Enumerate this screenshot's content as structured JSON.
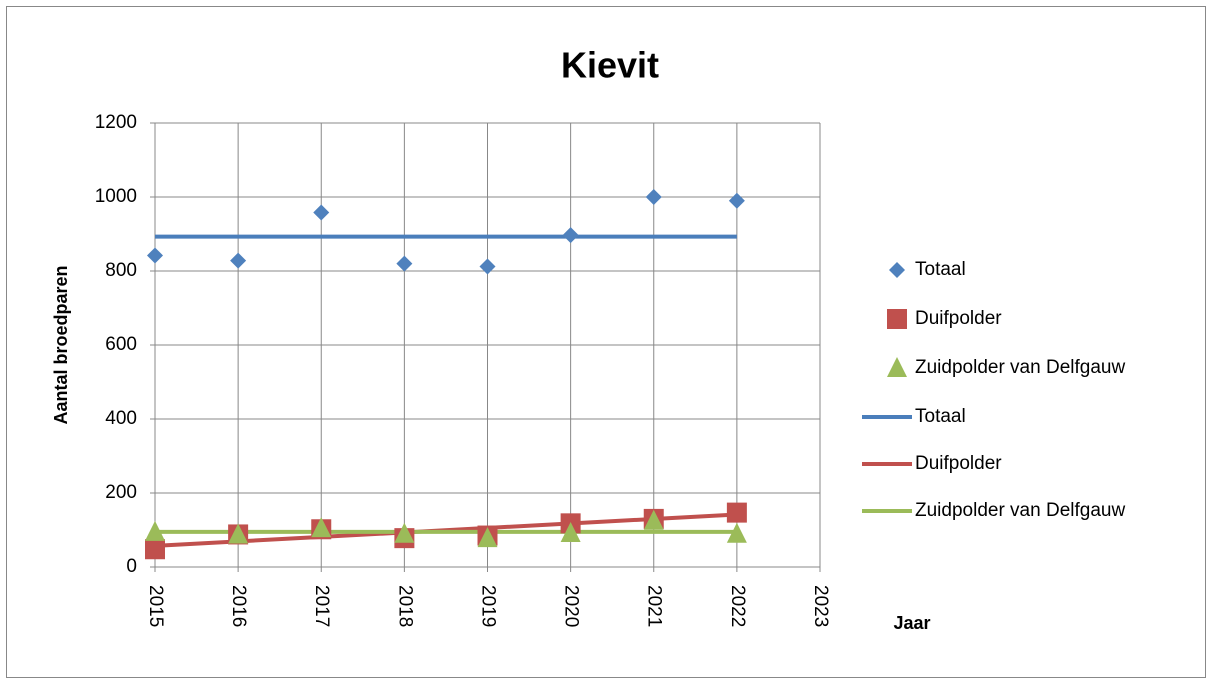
{
  "chart_data": {
    "type": "scatter",
    "title": "Kievit",
    "x_label": "Jaar",
    "y_label": "Aantal broedparen",
    "xlim": [
      2015,
      2023
    ],
    "xticks": [
      2015,
      2016,
      2017,
      2018,
      2019,
      2020,
      2021,
      2022,
      2023
    ],
    "ylim": [
      0,
      1200
    ],
    "yticks": [
      0,
      200,
      400,
      600,
      800,
      1000,
      1200
    ],
    "grid": true,
    "legend": "right",
    "x": [
      2015,
      2016,
      2017,
      2018,
      2019,
      2020,
      2021,
      2022
    ],
    "series": [
      {
        "name": "Totaal",
        "color": "#4f81bd",
        "marker": "diamond",
        "values": [
          842,
          828,
          958,
          820,
          812,
          897,
          1000,
          990
        ]
      },
      {
        "name": "Duifpolder",
        "color": "#c0504d",
        "marker": "square",
        "values": [
          48,
          88,
          102,
          78,
          85,
          118,
          130,
          147
        ]
      },
      {
        "name": "Zuidpolder van Delfgauw",
        "color": "#9bbb59",
        "marker": "triangle",
        "values": [
          95,
          88,
          105,
          90,
          78,
          92,
          125,
          90
        ]
      }
    ],
    "trendlines": [
      {
        "name": "Totaal",
        "color": "#4a7ebb",
        "x": [
          2015,
          2022
        ],
        "values": [
          893,
          893
        ]
      },
      {
        "name": "Duifpolder",
        "color": "#c0504d",
        "x": [
          2015,
          2022
        ],
        "values": [
          57,
          142
        ]
      },
      {
        "name": "Zuidpolder van Delfgauw",
        "color": "#9bbb59",
        "x": [
          2015,
          2022
        ],
        "values": [
          95,
          95
        ]
      }
    ]
  }
}
